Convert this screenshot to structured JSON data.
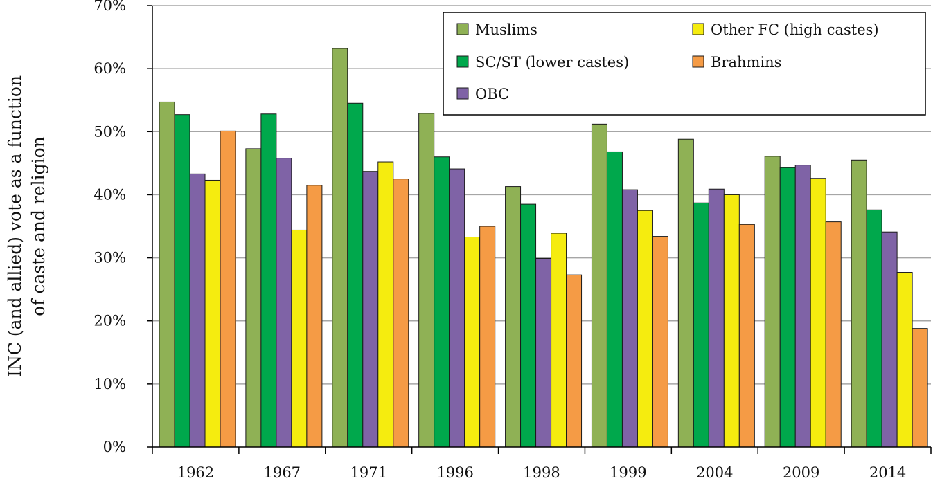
{
  "chart_data": {
    "type": "bar",
    "title": "",
    "xlabel": "",
    "ylabel_lines": [
      "INC (and allied)  vote as a function",
      "of caste and religion"
    ],
    "ylim": [
      0,
      70
    ],
    "yticks": [
      "0%",
      "10%",
      "20%",
      "30%",
      "40%",
      "50%",
      "60%",
      "70%"
    ],
    "grid": true,
    "legend_position": "top-right",
    "categories": [
      "1962",
      "1967",
      "1971",
      "1996",
      "1998",
      "1999",
      "2004",
      "2009",
      "2014"
    ],
    "series": [
      {
        "name": "Muslims",
        "color": "#8fb155",
        "values": [
          54.7,
          47.3,
          63.2,
          52.9,
          41.3,
          51.2,
          48.8,
          46.1,
          45.5
        ]
      },
      {
        "name": "SC/ST (lower castes)",
        "color": "#00a84c",
        "values": [
          52.7,
          52.8,
          54.5,
          46.0,
          38.5,
          46.8,
          38.7,
          44.3,
          37.6
        ]
      },
      {
        "name": "OBC",
        "color": "#7f63a6",
        "values": [
          43.3,
          45.8,
          43.7,
          44.1,
          29.9,
          40.8,
          40.9,
          44.7,
          34.1
        ]
      },
      {
        "name": "Other FC (high castes)",
        "color": "#f5ec0f",
        "values": [
          42.3,
          34.4,
          45.2,
          33.3,
          33.9,
          37.5,
          40.0,
          42.6,
          27.7
        ]
      },
      {
        "name": "Brahmins",
        "color": "#f59b45",
        "values": [
          50.1,
          41.5,
          42.5,
          35.0,
          27.3,
          33.4,
          35.3,
          35.7,
          18.8
        ]
      }
    ],
    "legend_order": [
      "Muslims",
      "Other FC (high castes)",
      "SC/ST (lower castes)",
      "Brahmins",
      "OBC"
    ]
  }
}
